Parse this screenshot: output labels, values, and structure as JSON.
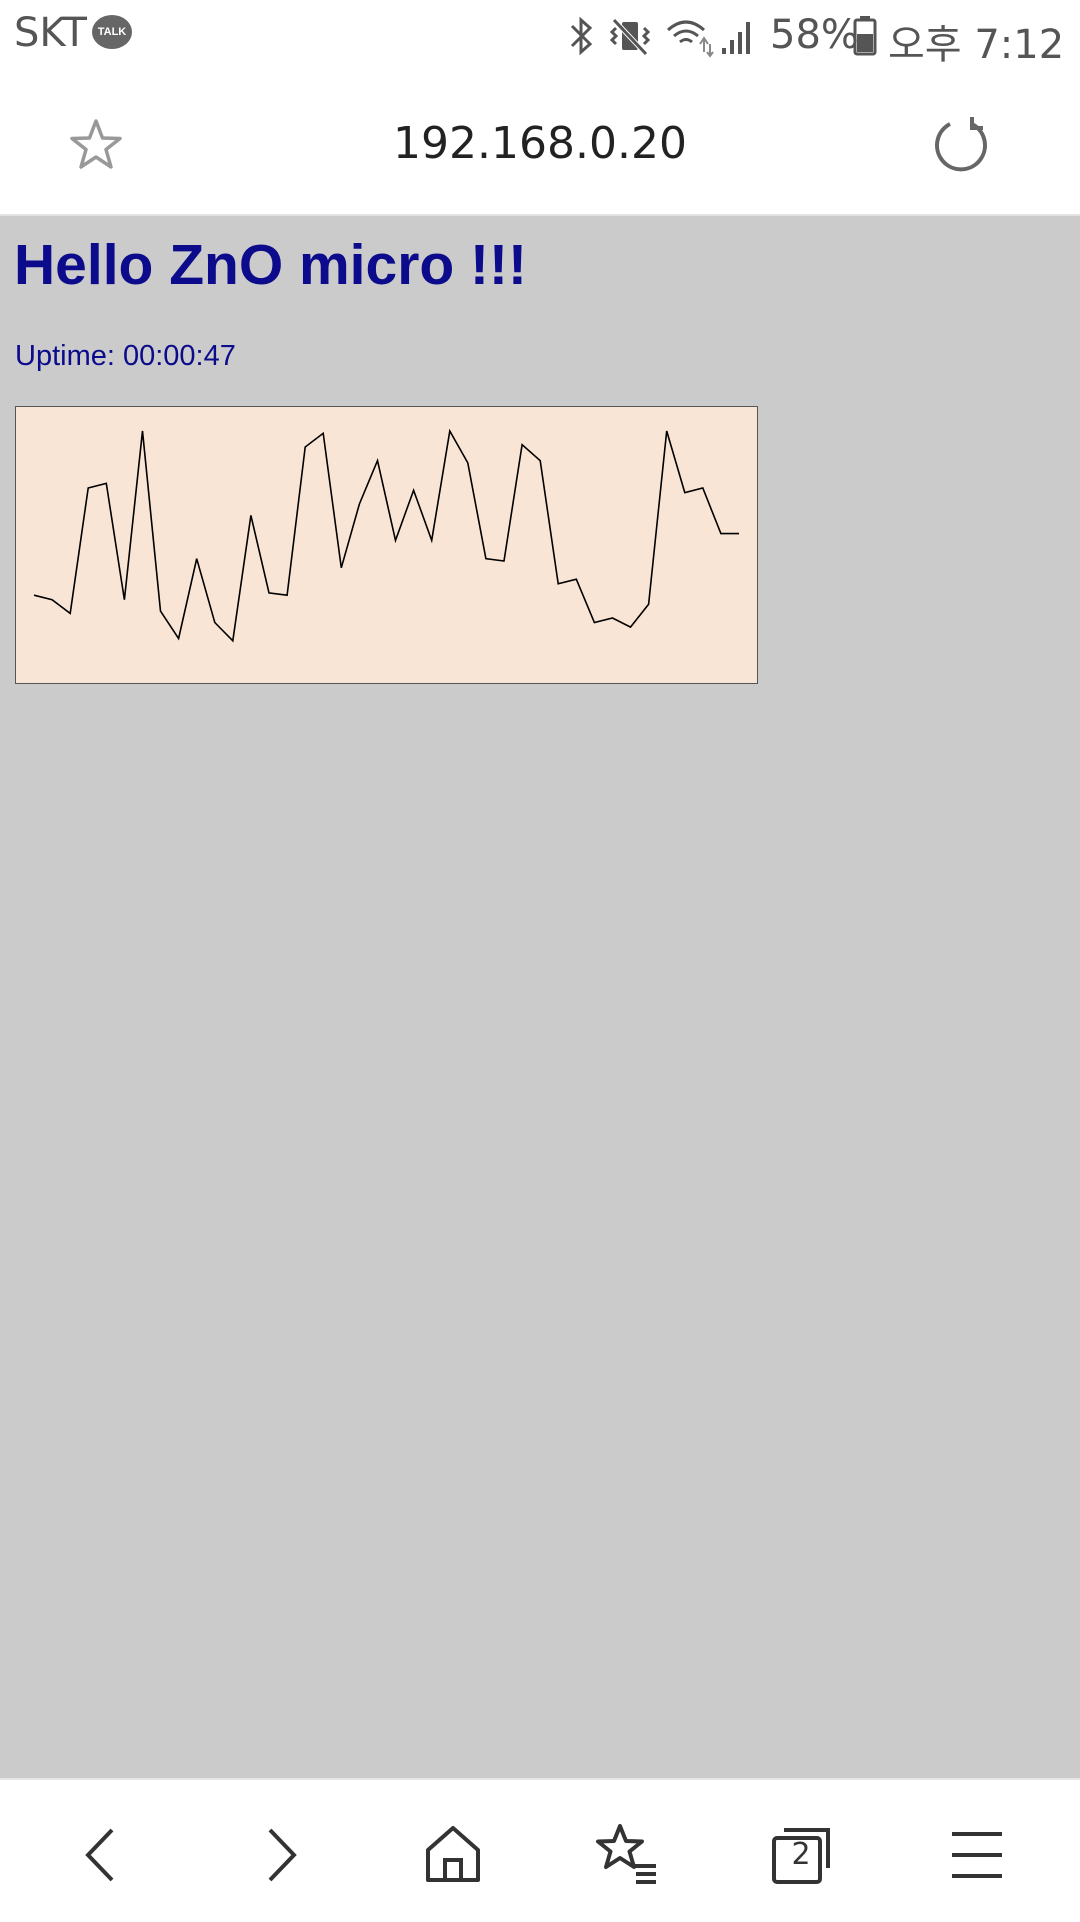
{
  "status_bar": {
    "carrier": "SKT",
    "talk_badge": "TALK",
    "battery_percent": "58%",
    "time": "오후 7:12"
  },
  "browser": {
    "url": "192.168.0.20",
    "tab_count": "2"
  },
  "page": {
    "heading": "Hello ZnO micro !!!",
    "uptime_label": "Uptime:",
    "uptime_value": "00:00:47"
  },
  "chart_data": {
    "type": "line",
    "title": "",
    "xlabel": "",
    "ylabel": "",
    "ylim": [
      0,
      100
    ],
    "x": [
      0,
      1,
      2,
      3,
      4,
      5,
      6,
      7,
      8,
      9,
      10,
      11,
      12,
      13,
      14,
      15,
      16,
      17,
      18,
      19,
      20,
      21,
      22,
      23,
      24,
      25,
      26,
      27,
      28,
      29,
      30,
      31,
      32,
      33,
      34,
      35,
      36,
      37,
      38,
      39
    ],
    "values": [
      28,
      26,
      20,
      75,
      77,
      26,
      100,
      21,
      9,
      44,
      16,
      8,
      63,
      29,
      28,
      93,
      99,
      40,
      68,
      87,
      52,
      74,
      52,
      100,
      86,
      44,
      43,
      94,
      87,
      33,
      35,
      16,
      18,
      14,
      24,
      100,
      73,
      75,
      55,
      55
    ],
    "colors": {
      "line": "#000000",
      "background": "#f9e5d5"
    }
  }
}
